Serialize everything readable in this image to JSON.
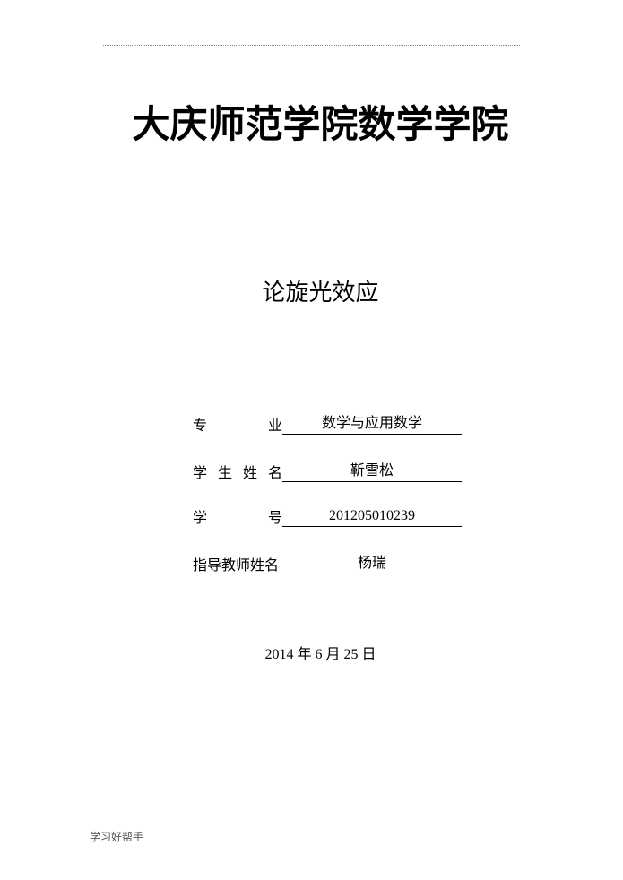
{
  "header": {
    "institution": "大庆师范学院数学学院"
  },
  "thesis": {
    "title": "论旋光效应"
  },
  "info": {
    "major_label_c1": "专",
    "major_label_c2": "业",
    "major_value": "数学与应用数学",
    "name_label_c1": "学",
    "name_label_c2": "生",
    "name_label_c3": "姓",
    "name_label_c4": "名",
    "name_value": "靳雪松",
    "id_label_c1": "学",
    "id_label_c2": "号",
    "id_value": "201205010239",
    "advisor_label": "指导教师姓名",
    "advisor_value": "杨瑞"
  },
  "date": {
    "text": "2014 年 6 月 25 日"
  },
  "footer": {
    "text": "学习好帮手"
  },
  "style": {
    "page_bg": "#ffffff",
    "text_color": "#000000",
    "institution_fontsize": 42,
    "title_fontsize": 26,
    "info_fontsize": 16,
    "footer_fontsize": 12,
    "underline_color": "#000000"
  }
}
